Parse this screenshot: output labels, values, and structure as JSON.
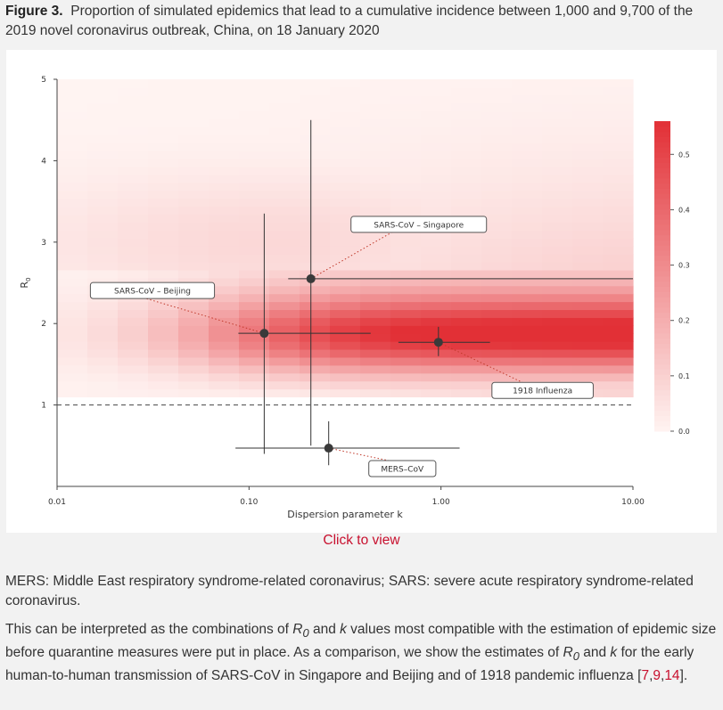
{
  "caption": {
    "label": "Figure 3.",
    "text": "Proportion of simulated epidemics that lead to a cumulative incidence between 1,000 and 9,700 of the 2019 novel coronavirus outbreak, China, on 18 January 2020"
  },
  "chart_data": {
    "type": "heatmap",
    "xlabel": "Dispersion parameter k",
    "ylabel": "R",
    "ylabel_subscript": "0",
    "x_scale": "log",
    "xlim": [
      0.01,
      10
    ],
    "ylim": [
      0,
      5
    ],
    "x_ticks": [
      "0.01",
      "0.10",
      "1.00",
      "10.00"
    ],
    "x_tick_values": [
      0.01,
      0.1,
      1,
      10
    ],
    "y_ticks": [
      "1",
      "2",
      "3",
      "4",
      "5"
    ],
    "y_tick_values": [
      1,
      2,
      3,
      4,
      5
    ],
    "colorbar": {
      "min": 0,
      "max": 0.56,
      "ticks": [
        "0.0",
        "0.1",
        "0.2",
        "0.3",
        "0.4",
        "0.5"
      ],
      "tick_values": [
        0,
        0.1,
        0.2,
        0.3,
        0.4,
        0.5
      ],
      "low_color": "#fff4f2",
      "high_color": "#e23036"
    },
    "threshold_line": {
      "y": 1,
      "style": "dashed"
    },
    "estimates": [
      {
        "label": "SARS-CoV – Singapore",
        "k": 0.21,
        "r0": 2.55,
        "k_range": [
          0.16,
          10
        ],
        "r0_range": [
          0.5,
          4.5
        ],
        "label_pos": "top-right"
      },
      {
        "label": "SARS-CoV – Beijing",
        "k": 0.12,
        "r0": 1.88,
        "k_range": [
          0.088,
          0.43
        ],
        "r0_range": [
          0.4,
          3.35
        ],
        "label_pos": "left"
      },
      {
        "label": "1918 Influenza",
        "k": 0.97,
        "r0": 1.77,
        "k_range": [
          0.6,
          1.8
        ],
        "r0_range": [
          1.6,
          1.96
        ],
        "label_pos": "bottom-right"
      },
      {
        "label": "MERS–CoV",
        "k": 0.26,
        "r0": 0.47,
        "k_range": [
          0.085,
          1.25
        ],
        "r0_range": [
          0.26,
          0.8
        ],
        "label_pos": "bottom-right"
      }
    ]
  },
  "link": {
    "click_to_view": "Click to view"
  },
  "abbrev": "MERS: Middle East respiratory syndrome-related coronavirus; SARS: severe acute respiratory syndrome-related coronavirus.",
  "paragraph": {
    "p1": "This can be interpreted as the combinations of ",
    "r": "R",
    "sub0": "0",
    "p2": " and ",
    "k": "k",
    "p3": " values most compatible with the estimation of epidemic size before quarantine measures were put in place. As a comparison, we show the estimates of ",
    "p4": " for the early human-to-human transmission of SARS-CoV in Singapore and Beijing and of 1918 pandemic influenza ",
    "open_bracket": "[",
    "ref1": "7",
    "ref2": "9",
    "ref3": "14",
    "comma": ",",
    "close": "]."
  }
}
